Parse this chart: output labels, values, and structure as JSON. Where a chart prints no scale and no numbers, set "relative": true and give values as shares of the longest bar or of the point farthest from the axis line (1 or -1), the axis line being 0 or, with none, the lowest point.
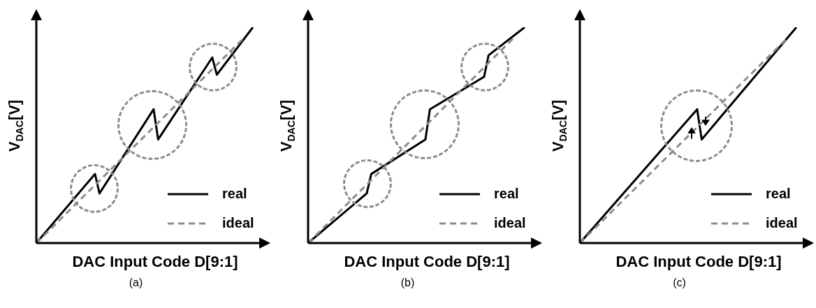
{
  "chart_data": [
    {
      "type": "line",
      "relative": true,
      "xlabel": "DAC Input Code D[9:1]",
      "ylabel": "V$_{DAC}$[V]",
      "legend": "bottom right",
      "annotations": [
        "(a)"
      ],
      "categories": [
        null,
        null,
        null,
        null,
        null,
        null,
        null,
        null,
        null,
        null,
        null,
        null,
        null,
        null,
        null,
        null,
        null,
        null,
        null,
        null,
        null,
        null,
        null,
        null,
        null,
        null,
        null,
        null,
        null,
        null,
        null,
        null,
        null,
        null,
        null,
        null,
        null,
        null,
        null,
        null,
        null,
        null,
        null,
        null,
        null,
        null,
        null,
        null,
        null
      ],
      "series": [
        {
          "name": "real",
          "color": "#000000",
          "values": [
            0,
            null,
            null,
            null,
            null,
            null,
            null,
            null,
            null,
            null,
            null,
            null,
            null,
            0.32,
            0.23,
            null,
            null,
            null,
            null,
            null,
            null,
            null,
            null,
            null,
            null,
            null,
            0.62,
            0.48,
            null,
            null,
            null,
            null,
            null,
            null,
            null,
            null,
            null,
            null,
            null,
            0.86,
            0.78,
            null,
            null,
            null,
            null,
            null,
            null,
            null,
            1
          ]
        },
        {
          "name": "ideal",
          "color": "#8c8c8c",
          "line_style": "dashed",
          "values": [
            0,
            null,
            null,
            null,
            null,
            null,
            null,
            null,
            null,
            null,
            null,
            null,
            null,
            null,
            null,
            null,
            null,
            null,
            null,
            null,
            null,
            null,
            null,
            null,
            null,
            null,
            null,
            null,
            null,
            null,
            null,
            null,
            null,
            null,
            null,
            null,
            null,
            null,
            null,
            null,
            null,
            null,
            null,
            null,
            null,
            null,
            0.95,
            null,
            null
          ]
        }
      ]
    },
    {
      "type": "line",
      "relative": true,
      "xlabel": "DAC Input Code D[9:1]",
      "ylabel": "V$_{DAC}$[V]",
      "legend": "bottom right",
      "annotations": [
        "(b)"
      ],
      "categories": [
        null,
        null,
        null,
        null,
        null,
        null,
        null,
        null,
        null,
        null,
        null,
        null,
        null,
        null,
        null,
        null,
        null,
        null,
        null,
        null,
        null,
        null,
        null,
        null,
        null,
        null,
        null,
        null,
        null,
        null,
        null,
        null,
        null,
        null,
        null,
        null,
        null,
        null,
        null,
        null,
        null,
        null,
        null,
        null,
        null,
        null,
        null,
        null,
        null
      ],
      "series": [
        {
          "name": "real",
          "color": "#000000",
          "values": [
            0,
            null,
            null,
            null,
            null,
            null,
            null,
            null,
            null,
            null,
            null,
            null,
            null,
            0.23,
            0.32,
            null,
            null,
            null,
            null,
            null,
            null,
            null,
            null,
            null,
            null,
            null,
            0.48,
            0.62,
            null,
            null,
            null,
            null,
            null,
            null,
            null,
            null,
            null,
            null,
            null,
            0.77,
            0.87,
            null,
            null,
            null,
            null,
            null,
            null,
            null,
            1
          ]
        },
        {
          "name": "ideal",
          "color": "#8c8c8c",
          "line_style": "dashed",
          "values": [
            0,
            null,
            null,
            null,
            null,
            null,
            null,
            null,
            null,
            null,
            null,
            null,
            null,
            null,
            null,
            null,
            null,
            null,
            null,
            null,
            null,
            null,
            null,
            null,
            null,
            null,
            null,
            null,
            null,
            null,
            null,
            null,
            null,
            null,
            null,
            null,
            null,
            null,
            null,
            null,
            null,
            null,
            null,
            null,
            null,
            null,
            0.96,
            null,
            null
          ]
        }
      ]
    },
    {
      "type": "line",
      "relative": true,
      "xlabel": "DAC Input Code D[9:1]",
      "ylabel": "V$_{DAC}$[V]",
      "legend": "bottom right",
      "annotations": [
        "(c)"
      ],
      "categories": [
        null,
        null,
        null,
        null,
        null,
        null,
        null,
        null,
        null,
        null,
        null,
        null,
        null,
        null,
        null,
        null,
        null,
        null,
        null,
        null,
        null,
        null,
        null,
        null,
        null,
        null,
        null,
        null,
        null,
        null,
        null,
        null,
        null,
        null,
        null,
        null,
        null,
        null,
        null,
        null,
        null,
        null,
        null,
        null,
        null,
        null,
        null,
        null,
        null
      ],
      "series": [
        {
          "name": "real",
          "color": "#000000",
          "values": [
            0,
            null,
            null,
            null,
            null,
            null,
            null,
            null,
            null,
            null,
            null,
            null,
            null,
            null,
            null,
            null,
            null,
            null,
            null,
            null,
            null,
            null,
            null,
            null,
            null,
            null,
            0.62,
            0.48,
            null,
            null,
            null,
            null,
            null,
            null,
            null,
            null,
            null,
            null,
            null,
            null,
            null,
            null,
            null,
            null,
            null,
            null,
            null,
            null,
            1
          ]
        },
        {
          "name": "ideal",
          "color": "#8c8c8c",
          "line_style": "dashed",
          "values": [
            0,
            null,
            null,
            null,
            null,
            null,
            null,
            null,
            null,
            null,
            null,
            null,
            null,
            null,
            null,
            null,
            null,
            null,
            null,
            null,
            null,
            null,
            null,
            null,
            null,
            null,
            null,
            null,
            null,
            null,
            null,
            null,
            null,
            null,
            null,
            null,
            null,
            null,
            null,
            null,
            null,
            null,
            null,
            null,
            null,
            null,
            0.95,
            null,
            null
          ]
        }
      ]
    }
  ]
}
